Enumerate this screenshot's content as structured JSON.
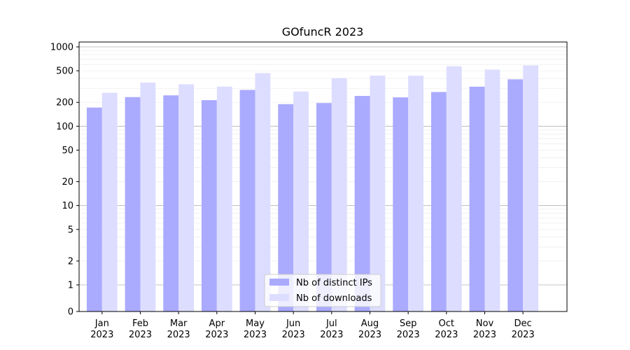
{
  "chart_data": {
    "type": "bar",
    "title": "GOfuncR 2023",
    "xlabel": "",
    "ylabel": "",
    "y_scale": "symlog",
    "ylim": [
      0,
      1000
    ],
    "y_ticks": [
      0,
      1,
      2,
      5,
      10,
      20,
      50,
      100,
      200,
      500,
      1000
    ],
    "y_tick_labels": [
      "0",
      "1",
      "2",
      "5",
      "10",
      "20",
      "50",
      "100",
      "200",
      "500",
      "1000"
    ],
    "grid": true,
    "legend_position": "bottom-center",
    "categories": [
      "Jan",
      "Feb",
      "Mar",
      "Apr",
      "May",
      "Jun",
      "Jul",
      "Aug",
      "Sep",
      "Oct",
      "Nov",
      "Dec"
    ],
    "category_year": "2023",
    "series": [
      {
        "name": "Nb of distinct IPs",
        "color": "#aaaaff",
        "values": [
          172,
          233,
          245,
          213,
          287,
          190,
          196,
          241,
          231,
          270,
          315,
          390
        ]
      },
      {
        "name": "Nb of downloads",
        "color": "#ddddff",
        "values": [
          264,
          355,
          338,
          316,
          468,
          274,
          405,
          435,
          433,
          570,
          518,
          584
        ]
      }
    ]
  }
}
